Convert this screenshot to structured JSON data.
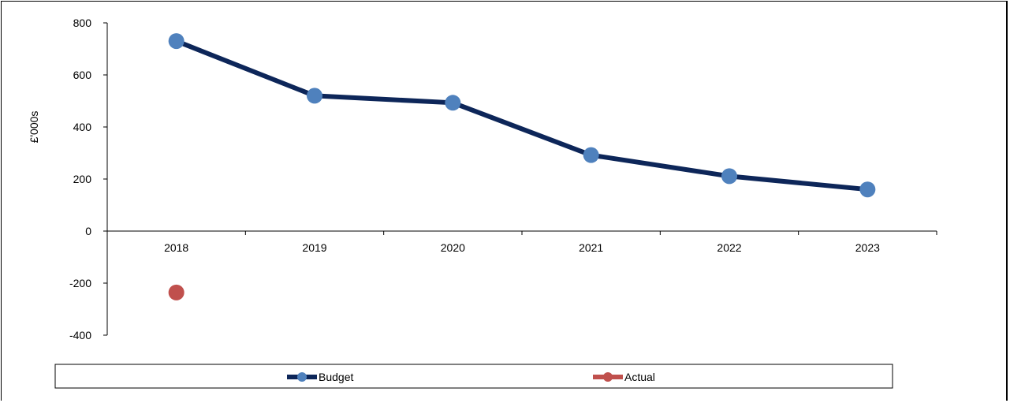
{
  "chart_data": {
    "type": "line",
    "title": "",
    "xlabel": "",
    "ylabel": "£'000s",
    "categories": [
      "2018",
      "2019",
      "2020",
      "2021",
      "2022",
      "2023"
    ],
    "ylim": [
      -400,
      800
    ],
    "yticks": [
      800,
      600,
      400,
      200,
      0,
      -200,
      -400
    ],
    "negative_tick_color": "#ff0000",
    "grid": false,
    "legend_position": "bottom",
    "series": [
      {
        "name": "Budget",
        "values": [
          730,
          520,
          493,
          292,
          211,
          160
        ],
        "line_color": "#0d2659",
        "marker_color": "#4f81bd"
      },
      {
        "name": "Actual",
        "values": [
          -236,
          null,
          null,
          null,
          null,
          null
        ],
        "line_color": "#c0504d",
        "marker_color": "#c0504d"
      }
    ]
  }
}
